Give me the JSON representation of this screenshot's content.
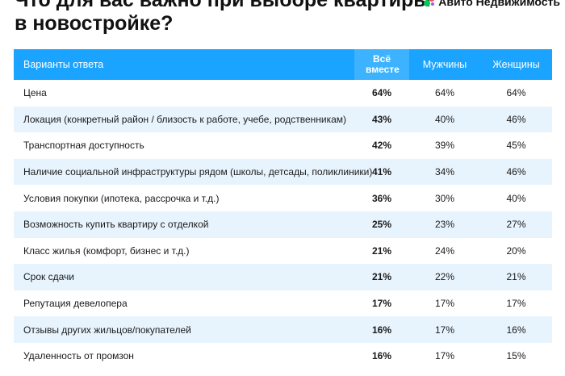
{
  "title": "Что для вас важно при выборе квартиры в новостройке?",
  "brand": "Авито Недвижимость",
  "chart_data": {
    "type": "table",
    "columns": [
      "Варианты ответа",
      "Всё вместе",
      "Мужчины",
      "Женщины"
    ],
    "rows": [
      {
        "option": "Цена",
        "total": "64%",
        "men": "64%",
        "women": "64%"
      },
      {
        "option": "Локация (конкретный район / близость к работе, учебе, родственникам)",
        "total": "43%",
        "men": "40%",
        "women": "46%"
      },
      {
        "option": "Транспортная доступность",
        "total": "42%",
        "men": "39%",
        "women": "45%"
      },
      {
        "option": "Наличие социальной инфраструктуры рядом (школы, детсады, поликлиники)",
        "total": "41%",
        "men": "34%",
        "women": "46%"
      },
      {
        "option": "Условия покупки (ипотека, рассрочка и т.д.)",
        "total": "36%",
        "men": "30%",
        "women": "40%"
      },
      {
        "option": "Возможность купить квартиру с отделкой",
        "total": "25%",
        "men": "23%",
        "women": "27%"
      },
      {
        "option": "Класс жилья (комфорт, бизнес и т.д.)",
        "total": "21%",
        "men": "24%",
        "women": "20%"
      },
      {
        "option": "Срок сдачи",
        "total": "21%",
        "men": "22%",
        "women": "21%"
      },
      {
        "option": "Репутация девелопера",
        "total": "17%",
        "men": "17%",
        "women": "17%"
      },
      {
        "option": "Отзывы других жильцов/покупателей",
        "total": "16%",
        "men": "17%",
        "women": "16%"
      },
      {
        "option": "Удаленность от промзон",
        "total": "16%",
        "men": "17%",
        "women": "15%"
      }
    ]
  },
  "colors": {
    "header": "#1aa3ff",
    "header_total": "#3db3ff",
    "row_alt": "#e8f4fd"
  }
}
